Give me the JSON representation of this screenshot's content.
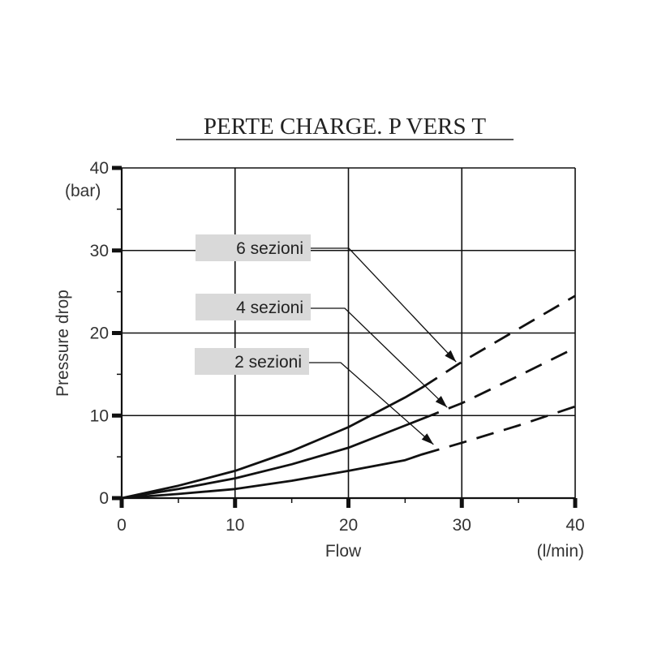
{
  "chart_data": {
    "type": "line",
    "title": "PERTE CHARGE. P VERS T",
    "xlabel": "Flow",
    "xunit": "(l/min)",
    "ylabel": "Pressure drop",
    "yunit": "(bar)",
    "xlim": [
      0,
      40
    ],
    "ylim": [
      0,
      40
    ],
    "x_ticks": [
      0,
      10,
      20,
      30,
      40
    ],
    "y_ticks": [
      0,
      10,
      20,
      30,
      40
    ],
    "grid": true,
    "series": [
      {
        "name": "6 sezioni",
        "solid": {
          "x": [
            0,
            5,
            10,
            15,
            20,
            25,
            26.5
          ],
          "y": [
            0,
            1.5,
            3.3,
            5.7,
            8.6,
            12.2,
            13.4
          ]
        },
        "dashed": {
          "x": [
            26.5,
            30,
            35,
            40
          ],
          "y": [
            13.4,
            16.5,
            20.5,
            24.5
          ]
        }
      },
      {
        "name": "4 sezioni",
        "solid": {
          "x": [
            0,
            5,
            10,
            15,
            20,
            25,
            26.5
          ],
          "y": [
            0,
            1.1,
            2.4,
            4.1,
            6.1,
            8.8,
            9.6
          ]
        },
        "dashed": {
          "x": [
            26.5,
            30,
            35,
            40
          ],
          "y": [
            9.6,
            11.5,
            14.8,
            18.2
          ]
        }
      },
      {
        "name": "2 sezioni",
        "solid": {
          "x": [
            0,
            5,
            10,
            15,
            20,
            25,
            26.5
          ],
          "y": [
            0,
            0.5,
            1.1,
            2.1,
            3.3,
            4.6,
            5.3
          ]
        },
        "dashed": {
          "x": [
            26.5,
            30,
            35,
            40
          ],
          "y": [
            5.3,
            6.7,
            8.8,
            11.1
          ]
        }
      }
    ],
    "labels": [
      {
        "text": "6 sezioni",
        "points_to": [
          29.5,
          16.5
        ]
      },
      {
        "text": "4 sezioni",
        "points_to": [
          28.7,
          11.0
        ]
      },
      {
        "text": "2 sezioni",
        "points_to": [
          27.5,
          6.5
        ]
      }
    ],
    "colors": {
      "line": "#111111",
      "grid": "#111111",
      "label_box": "#d9d9d9",
      "text": "#333333"
    }
  }
}
